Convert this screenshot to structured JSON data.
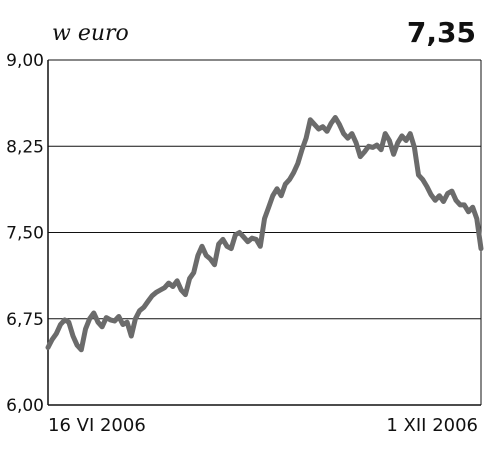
{
  "header": {
    "unit": "w euro",
    "current_value": "7,35"
  },
  "chart_data": {
    "type": "line",
    "title": "",
    "xlabel": "",
    "ylabel": "w euro",
    "ylim": [
      6.0,
      9.0
    ],
    "y_ticks": [
      6.0,
      6.75,
      7.5,
      8.25,
      9.0
    ],
    "y_tick_labels": [
      "6,00",
      "6,75",
      "7,50",
      "8,25",
      "9,00"
    ],
    "x_tick_labels": [
      "16 VI 2006",
      "1 XII 2006"
    ],
    "grid": "horizontal",
    "legend": "none",
    "line_color": "#6b6b6b",
    "series": [
      {
        "values": [
          6.5,
          6.57,
          6.62,
          6.7,
          6.74,
          6.72,
          6.6,
          6.52,
          6.48,
          6.66,
          6.75,
          6.8,
          6.72,
          6.68,
          6.76,
          6.74,
          6.73,
          6.77,
          6.7,
          6.72,
          6.6,
          6.75,
          6.82,
          6.85,
          6.9,
          6.95,
          6.98,
          7.0,
          7.02,
          7.06,
          7.03,
          7.08,
          7.0,
          6.96,
          7.1,
          7.15,
          7.3,
          7.38,
          7.3,
          7.27,
          7.22,
          7.4,
          7.44,
          7.38,
          7.36,
          7.48,
          7.5,
          7.46,
          7.42,
          7.45,
          7.44,
          7.38,
          7.62,
          7.72,
          7.82,
          7.88,
          7.82,
          7.92,
          7.96,
          8.02,
          8.1,
          8.22,
          8.32,
          8.48,
          8.44,
          8.4,
          8.42,
          8.38,
          8.45,
          8.5,
          8.44,
          8.36,
          8.32,
          8.36,
          8.28,
          8.16,
          8.2,
          8.25,
          8.24,
          8.26,
          8.22,
          8.36,
          8.3,
          8.18,
          8.28,
          8.34,
          8.3,
          8.36,
          8.24,
          8.0,
          7.96,
          7.9,
          7.83,
          7.78,
          7.82,
          7.77,
          7.84,
          7.86,
          7.78,
          7.74,
          7.74,
          7.68,
          7.72,
          7.62,
          7.36
        ]
      }
    ]
  }
}
